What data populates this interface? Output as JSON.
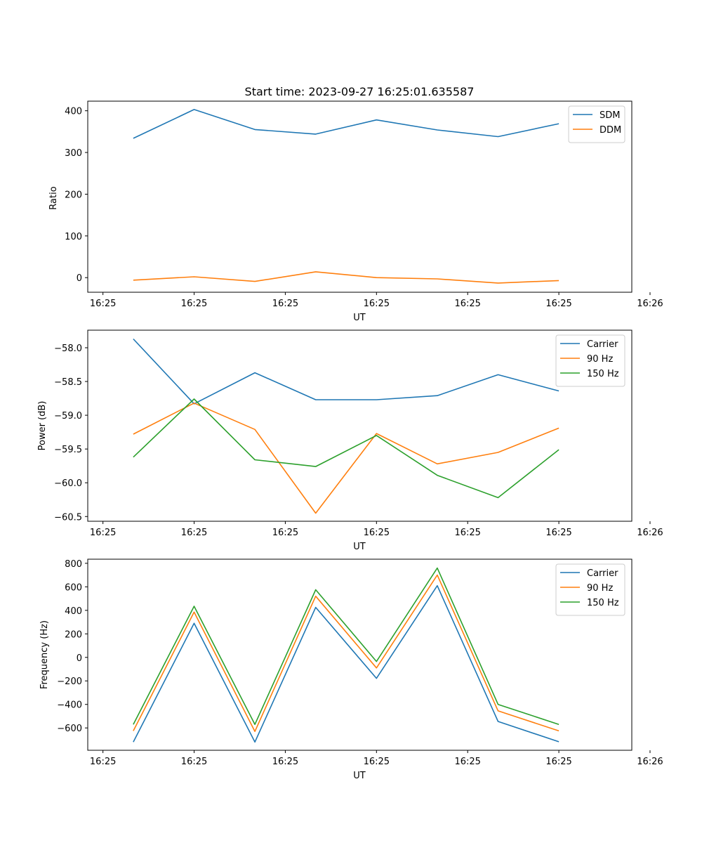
{
  "chart_data": [
    {
      "type": "line",
      "title": "Start time: 2023-09-27 16:25:01.635587",
      "xlabel": "UT",
      "ylabel": "Ratio",
      "x": [
        1,
        2,
        3,
        4,
        5,
        6,
        7,
        8
      ],
      "xlim": [
        0.25,
        9.2
      ],
      "xticks": [
        0.5,
        2,
        3.5,
        5,
        6.5,
        8,
        9.5
      ],
      "xtick_labels": [
        "16:25",
        "16:25",
        "16:25",
        "16:25",
        "16:25",
        "16:25",
        "16:26"
      ],
      "ylim": [
        -35,
        423
      ],
      "yticks": [
        0,
        100,
        200,
        300,
        400
      ],
      "ytick_labels": [
        "0",
        "100",
        "200",
        "300",
        "400"
      ],
      "legend_position": "top-right",
      "series": [
        {
          "name": "SDM",
          "color": "#1f77b4",
          "values": [
            334,
            403,
            355,
            344,
            378,
            354,
            338,
            369
          ]
        },
        {
          "name": "DDM",
          "color": "#ff7f0e",
          "values": [
            -6,
            2,
            -9,
            14,
            0,
            -3,
            -13,
            -7
          ]
        }
      ]
    },
    {
      "type": "line",
      "title": "",
      "xlabel": "UT",
      "ylabel": "Power (dB)",
      "x": [
        1,
        2,
        3,
        4,
        5,
        6,
        7,
        8
      ],
      "xlim": [
        0.25,
        9.2
      ],
      "xticks": [
        0.5,
        2,
        3.5,
        5,
        6.5,
        8,
        9.5
      ],
      "xtick_labels": [
        "16:25",
        "16:25",
        "16:25",
        "16:25",
        "16:25",
        "16:25",
        "16:26"
      ],
      "ylim": [
        -60.57,
        -57.74
      ],
      "yticks": [
        -58.0,
        -58.5,
        -59.0,
        -59.5,
        -60.0,
        -60.5
      ],
      "ytick_labels": [
        "−58.0",
        "−58.5",
        "−59.0",
        "−59.5",
        "−60.0",
        "−60.5"
      ],
      "legend_position": "top-right",
      "series": [
        {
          "name": "Carrier",
          "color": "#1f77b4",
          "values": [
            -57.87,
            -58.83,
            -58.37,
            -58.77,
            -58.77,
            -58.71,
            -58.4,
            -58.64
          ]
        },
        {
          "name": "90 Hz",
          "color": "#ff7f0e",
          "values": [
            -59.28,
            -58.82,
            -59.21,
            -60.45,
            -59.27,
            -59.72,
            -59.55,
            -59.19
          ]
        },
        {
          "name": "150 Hz",
          "color": "#2ca02c",
          "values": [
            -59.62,
            -58.76,
            -59.66,
            -59.76,
            -59.3,
            -59.89,
            -60.22,
            -59.51
          ]
        }
      ]
    },
    {
      "type": "line",
      "title": "",
      "xlabel": "UT",
      "ylabel": "Frequency (Hz)",
      "x": [
        1,
        2,
        3,
        4,
        5,
        6,
        7,
        8
      ],
      "xlim": [
        0.25,
        9.2
      ],
      "xticks": [
        0.5,
        2,
        3.5,
        5,
        6.5,
        8,
        9.5
      ],
      "xtick_labels": [
        "16:25",
        "16:25",
        "16:25",
        "16:25",
        "16:25",
        "16:25",
        "16:26"
      ],
      "ylim": [
        -790,
        835
      ],
      "yticks": [
        800,
        600,
        400,
        200,
        0,
        -200,
        -400,
        -600
      ],
      "ytick_labels": [
        "800",
        "600",
        "400",
        "200",
        "0",
        "−200",
        "−400",
        "−600"
      ],
      "legend_position": "top-right",
      "series": [
        {
          "name": "Carrier",
          "color": "#1f77b4",
          "values": [
            -720,
            290,
            -720,
            425,
            -178,
            610,
            -545,
            -718
          ]
        },
        {
          "name": "90 Hz",
          "color": "#ff7f0e",
          "values": [
            -625,
            385,
            -630,
            520,
            -90,
            700,
            -455,
            -625
          ]
        },
        {
          "name": "150 Hz",
          "color": "#2ca02c",
          "values": [
            -570,
            435,
            -570,
            575,
            -35,
            760,
            -400,
            -570
          ]
        }
      ]
    }
  ]
}
